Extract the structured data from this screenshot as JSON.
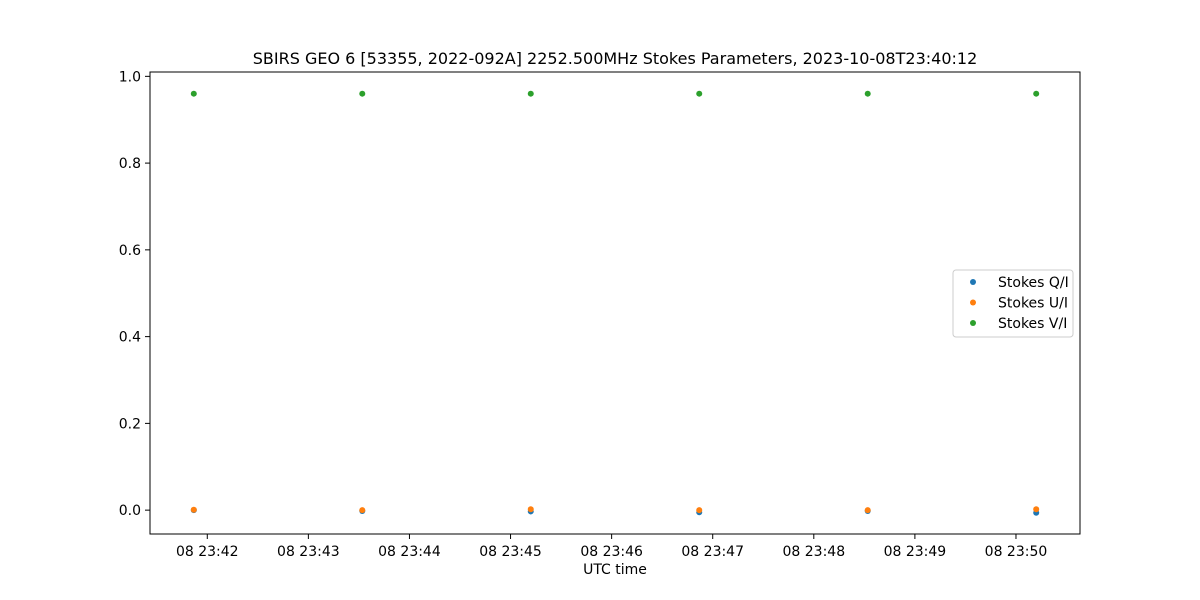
{
  "chart_data": {
    "type": "scatter",
    "title": "SBIRS GEO 6 [53355, 2022-092A] 2252.500MHz Stokes Parameters, 2023-10-08T23:40:12",
    "xlabel": "UTC time",
    "ylabel": "",
    "x_ticks": [
      "08 23:42",
      "08 23:43",
      "08 23:44",
      "08 23:45",
      "08 23:46",
      "08 23:47",
      "08 23:48",
      "08 23:49",
      "08 23:50"
    ],
    "y_ticks": [
      "0.0",
      "0.2",
      "0.4",
      "0.6",
      "0.8",
      "1.0"
    ],
    "xlim": [
      "2023-10-08T23:41:26",
      "2023-10-08T23:50:38"
    ],
    "ylim": [
      -0.055,
      1.01
    ],
    "grid": false,
    "legend_position": "center-right",
    "x": [
      "2023-10-08T23:41:52",
      "2023-10-08T23:43:32",
      "2023-10-08T23:45:12",
      "2023-10-08T23:46:52",
      "2023-10-08T23:48:32",
      "2023-10-08T23:50:12"
    ],
    "series": [
      {
        "name": "Stokes Q/I",
        "color": "#1f77b4",
        "values": [
          0.0,
          -0.002,
          -0.003,
          -0.005,
          -0.002,
          -0.006
        ]
      },
      {
        "name": "Stokes U/I",
        "color": "#ff7f0e",
        "values": [
          0.001,
          0.0,
          0.002,
          0.0,
          0.0,
          0.002
        ]
      },
      {
        "name": "Stokes V/I",
        "color": "#2ca02c",
        "values": [
          0.96,
          0.96,
          0.96,
          0.96,
          0.96,
          0.96
        ]
      }
    ]
  }
}
